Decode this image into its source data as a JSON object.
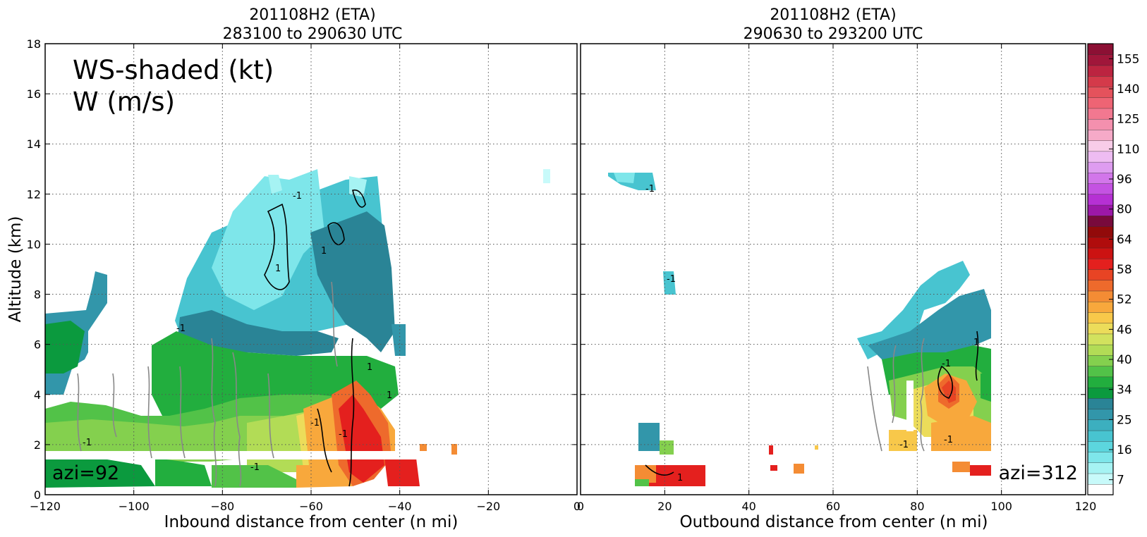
{
  "chart_data": [
    {
      "type": "heatmap",
      "title_line1": "201108H2 (ETA)",
      "title_line2": "283100 to 290630 UTC",
      "xlabel": "Inbound distance from center (n mi)",
      "ylabel": "Altitude (km)",
      "xlim": [
        -120,
        0
      ],
      "ylim": [
        0,
        18
      ],
      "xticks": [
        "−120",
        "−100",
        "−80",
        "−60",
        "−40",
        "−20",
        "0"
      ],
      "yticks": [
        "0",
        "2",
        "4",
        "6",
        "8",
        "10",
        "12",
        "14",
        "16",
        "18"
      ],
      "grid": true,
      "annotation_line1": "WS-shaded (kt)",
      "annotation_line2": "W (m/s)",
      "azimuth_label": "azi=92",
      "contour_labels": [
        "1",
        "-1"
      ]
    },
    {
      "type": "heatmap",
      "title_line1": "201108H2 (ETA)",
      "title_line2": "290630 to 293200 UTC",
      "xlabel": "Outbound distance from center (n mi)",
      "xlim": [
        0,
        120
      ],
      "ylim": [
        0,
        18
      ],
      "xticks": [
        "0",
        "20",
        "40",
        "60",
        "80",
        "100",
        "120"
      ],
      "grid": true,
      "azimuth_label": "azi=312"
    }
  ],
  "colorbar": {
    "tick_labels": [
      "7",
      "16",
      "25",
      "34",
      "40",
      "46",
      "52",
      "58",
      "64",
      "80",
      "96",
      "110",
      "125",
      "140",
      "155"
    ],
    "colors": [
      "#ffffff",
      "#c8fafa",
      "#a6f3f3",
      "#7ee6ea",
      "#5cd6de",
      "#48c4d0",
      "#3cafbf",
      "#3296aa",
      "#2a8496",
      "#0b9a3e",
      "#22ae3e",
      "#52c248",
      "#84d04e",
      "#b2dc56",
      "#d2e25e",
      "#ecdc5a",
      "#f8c84a",
      "#f8a83c",
      "#f48c34",
      "#ee6a2c",
      "#e84424",
      "#e4201e",
      "#cc1212",
      "#b00c0c",
      "#920a0a",
      "#780a3c",
      "#9c18a8",
      "#b630d4",
      "#c452e2",
      "#d276ea",
      "#de9cf0",
      "#eebcf2",
      "#f8cce8",
      "#f6aac8",
      "#f490ae",
      "#f27890",
      "#ee6474",
      "#e4525c",
      "#d43a4a",
      "#bc2440",
      "#a0163a",
      "#8c1034"
    ]
  }
}
